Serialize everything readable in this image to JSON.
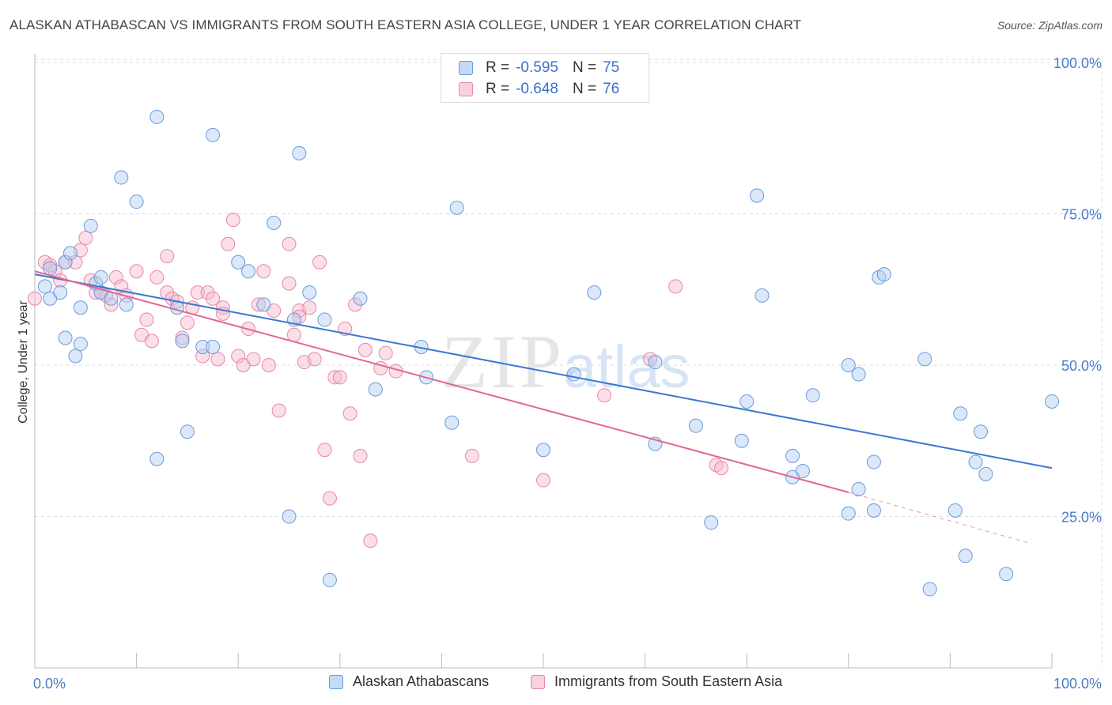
{
  "title": "ALASKAN ATHABASCAN VS IMMIGRANTS FROM SOUTH EASTERN ASIA COLLEGE, UNDER 1 YEAR CORRELATION CHART",
  "source": "Source: ZipAtlas.com",
  "watermark": {
    "zip": "ZIP",
    "atlas": "atlas"
  },
  "legend": {
    "rows": [
      {
        "r_label": "R =",
        "r_value": "-0.595",
        "n_label": "N =",
        "n_value": "75"
      },
      {
        "r_label": "R =",
        "r_value": "-0.648",
        "n_label": "N =",
        "n_value": "76"
      }
    ]
  },
  "colors": {
    "blue_fill": "#aecbf2",
    "blue_stroke": "#6b9bd8",
    "blue_line": "#3a78d0",
    "pink_fill": "#f7b9cc",
    "pink_stroke": "#e488a8",
    "pink_line": "#e06892",
    "grid": "#dddddd",
    "tick_label": "#4a7cc7"
  },
  "chart_data": {
    "type": "scatter",
    "title": "ALASKAN ATHABASCAN VS IMMIGRANTS FROM SOUTH EASTERN ASIA COLLEGE, UNDER 1 YEAR CORRELATION CHART",
    "xlabel": "",
    "ylabel": "College, Under 1 year",
    "xlim": [
      0,
      100
    ],
    "ylim": [
      0,
      105
    ],
    "x_tick_labels": [
      "0.0%",
      "100.0%"
    ],
    "y_ticks": [
      25,
      50,
      75,
      100
    ],
    "y_tick_labels": [
      "25.0%",
      "50.0%",
      "75.0%",
      "100.0%"
    ],
    "grid": true,
    "legend_position": "top-center",
    "series": [
      {
        "name": "Alaskan Athabascans",
        "color": "#aecbf2",
        "trend": {
          "x": [
            0,
            100
          ],
          "y": [
            65,
            33
          ]
        },
        "points": [
          [
            1,
            63
          ],
          [
            1.5,
            66
          ],
          [
            1.5,
            61
          ],
          [
            2.5,
            62
          ],
          [
            3,
            67
          ],
          [
            3,
            54.5
          ],
          [
            3.5,
            68.5
          ],
          [
            4,
            51.5
          ],
          [
            4.5,
            59.5
          ],
          [
            4.5,
            53.5
          ],
          [
            5.5,
            73
          ],
          [
            6,
            63.5
          ],
          [
            6.5,
            62
          ],
          [
            6.5,
            64.5
          ],
          [
            7.5,
            61
          ],
          [
            8.5,
            81
          ],
          [
            9,
            60
          ],
          [
            10,
            77
          ],
          [
            12,
            91
          ],
          [
            12,
            34.5
          ],
          [
            14,
            59.5
          ],
          [
            14.5,
            54
          ],
          [
            15,
            39
          ],
          [
            16.5,
            53
          ],
          [
            17.5,
            53
          ],
          [
            17.5,
            88
          ],
          [
            20,
            67
          ],
          [
            21,
            65.5
          ],
          [
            22.5,
            60
          ],
          [
            23.5,
            73.5
          ],
          [
            25,
            25
          ],
          [
            25.5,
            57.5
          ],
          [
            26,
            85
          ],
          [
            27,
            62
          ],
          [
            28.5,
            57.5
          ],
          [
            29,
            14.5
          ],
          [
            38,
            53
          ],
          [
            38.5,
            48
          ],
          [
            41,
            40.5
          ],
          [
            41.5,
            76
          ],
          [
            33.5,
            46
          ],
          [
            50,
            36
          ],
          [
            53,
            48.5
          ],
          [
            55,
            62
          ],
          [
            61,
            50.5
          ],
          [
            61,
            37
          ],
          [
            65,
            40
          ],
          [
            66.5,
            24
          ],
          [
            69.5,
            37.5
          ],
          [
            70,
            44
          ],
          [
            71,
            78
          ],
          [
            71.5,
            61.5
          ],
          [
            74.5,
            31.5
          ],
          [
            74.5,
            35
          ],
          [
            75.5,
            32.5
          ],
          [
            76.5,
            45
          ],
          [
            80,
            25.5
          ],
          [
            80,
            50
          ],
          [
            81,
            29.5
          ],
          [
            81,
            48.5
          ],
          [
            82.5,
            26
          ],
          [
            82.5,
            34
          ],
          [
            83,
            64.5
          ],
          [
            83.5,
            65
          ],
          [
            87.5,
            51
          ],
          [
            88,
            13
          ],
          [
            90.5,
            26
          ],
          [
            91,
            42
          ],
          [
            91.5,
            18.5
          ],
          [
            92.5,
            34
          ],
          [
            93,
            39
          ],
          [
            93.5,
            32
          ],
          [
            95.5,
            15.5
          ],
          [
            100,
            44
          ],
          [
            32,
            61
          ]
        ]
      },
      {
        "name": "Immigrants from South Eastern Asia",
        "color": "#f7b9cc",
        "trend": {
          "x": [
            0,
            80
          ],
          "y": [
            65.5,
            29
          ]
        },
        "trend_dashed": {
          "x": [
            80,
            98
          ],
          "y": [
            29,
            20.5
          ]
        },
        "points": [
          [
            0,
            61
          ],
          [
            1,
            67
          ],
          [
            2,
            65.5
          ],
          [
            2.5,
            64
          ],
          [
            3,
            67
          ],
          [
            4,
            67
          ],
          [
            4.5,
            69
          ],
          [
            5,
            71
          ],
          [
            5.5,
            64
          ],
          [
            6,
            62
          ],
          [
            7,
            61.5
          ],
          [
            7.5,
            60
          ],
          [
            8,
            64.5
          ],
          [
            8.5,
            63
          ],
          [
            9,
            61.5
          ],
          [
            10,
            65.5
          ],
          [
            10.5,
            55
          ],
          [
            11,
            57.5
          ],
          [
            11.5,
            54
          ],
          [
            12,
            64.5
          ],
          [
            13,
            68
          ],
          [
            13,
            62
          ],
          [
            13.5,
            61
          ],
          [
            14.5,
            54.5
          ],
          [
            15,
            57
          ],
          [
            15.5,
            59.5
          ],
          [
            16,
            62
          ],
          [
            16.5,
            51.5
          ],
          [
            17,
            62
          ],
          [
            17.5,
            61
          ],
          [
            18,
            51
          ],
          [
            18.5,
            59.5
          ],
          [
            19,
            70
          ],
          [
            19.5,
            74
          ],
          [
            20,
            51.5
          ],
          [
            20.5,
            50
          ],
          [
            21,
            56
          ],
          [
            21.5,
            51
          ],
          [
            22,
            60
          ],
          [
            22.5,
            65.5
          ],
          [
            23,
            50
          ],
          [
            23.5,
            59
          ],
          [
            24,
            42.5
          ],
          [
            25,
            63.5
          ],
          [
            25,
            70
          ],
          [
            25.5,
            55
          ],
          [
            26,
            59
          ],
          [
            26.5,
            50.5
          ],
          [
            27,
            59.5
          ],
          [
            27.5,
            51
          ],
          [
            28,
            67
          ],
          [
            28.5,
            36
          ],
          [
            29,
            28
          ],
          [
            29.5,
            48
          ],
          [
            30,
            48
          ],
          [
            30.5,
            56
          ],
          [
            31,
            42
          ],
          [
            31.5,
            60
          ],
          [
            32,
            35
          ],
          [
            32.5,
            52.5
          ],
          [
            33,
            21
          ],
          [
            34,
            49.5
          ],
          [
            34.5,
            52
          ],
          [
            35.5,
            49
          ],
          [
            43,
            35
          ],
          [
            50,
            31
          ],
          [
            56,
            45
          ],
          [
            60.5,
            51
          ],
          [
            63,
            63
          ],
          [
            67,
            33.5
          ],
          [
            67.5,
            33
          ],
          [
            6.5,
            62
          ],
          [
            18.5,
            58.5
          ],
          [
            26,
            58
          ],
          [
            14,
            60.5
          ],
          [
            1.5,
            66.5
          ]
        ]
      }
    ]
  },
  "bottom_legend": [
    "Alaskan Athabascans",
    "Immigrants from South Eastern Asia"
  ]
}
